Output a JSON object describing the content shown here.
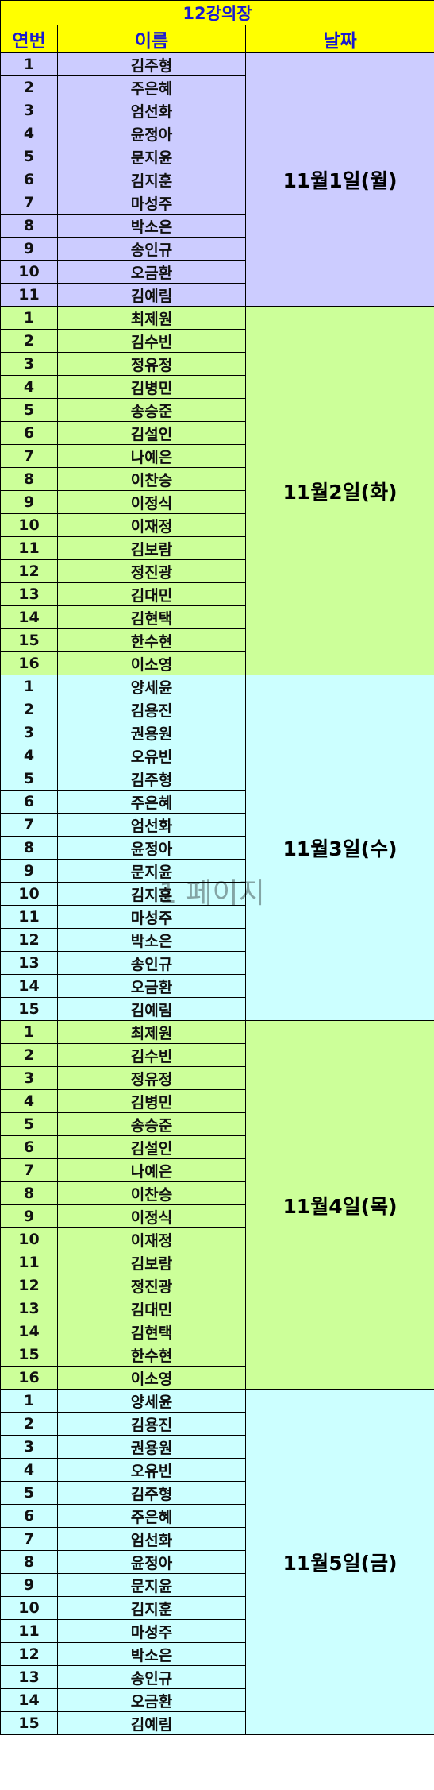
{
  "sheet_title": "12강의장",
  "headers": {
    "no": "연번",
    "name": "이름",
    "date": "날짜"
  },
  "watermark": "1 페이지",
  "groups": [
    {
      "date": "11월1일(월)",
      "bg": "#ccccff",
      "rows": [
        {
          "no": "1",
          "name": "김주형"
        },
        {
          "no": "2",
          "name": "주은혜"
        },
        {
          "no": "3",
          "name": "엄선화"
        },
        {
          "no": "4",
          "name": "윤정아"
        },
        {
          "no": "5",
          "name": "문지윤"
        },
        {
          "no": "6",
          "name": "김지훈"
        },
        {
          "no": "7",
          "name": "마성주"
        },
        {
          "no": "8",
          "name": "박소은"
        },
        {
          "no": "9",
          "name": "송인규"
        },
        {
          "no": "10",
          "name": "오금환"
        },
        {
          "no": "11",
          "name": "김예림"
        }
      ]
    },
    {
      "date": "11월2일(화)",
      "bg": "#ccff99",
      "rows": [
        {
          "no": "1",
          "name": "최제원"
        },
        {
          "no": "2",
          "name": "김수빈"
        },
        {
          "no": "3",
          "name": "정유정"
        },
        {
          "no": "4",
          "name": "김병민"
        },
        {
          "no": "5",
          "name": "송승준"
        },
        {
          "no": "6",
          "name": "김설인"
        },
        {
          "no": "7",
          "name": "나예은"
        },
        {
          "no": "8",
          "name": "이찬승"
        },
        {
          "no": "9",
          "name": "이정식"
        },
        {
          "no": "10",
          "name": "이재정"
        },
        {
          "no": "11",
          "name": "김보람"
        },
        {
          "no": "12",
          "name": "정진광"
        },
        {
          "no": "13",
          "name": "김대민"
        },
        {
          "no": "14",
          "name": "김현택"
        },
        {
          "no": "15",
          "name": "한수현"
        },
        {
          "no": "16",
          "name": "이소영"
        }
      ]
    },
    {
      "date": "11월3일(수)",
      "bg": "#ccffff",
      "rows": [
        {
          "no": "1",
          "name": "양세윤"
        },
        {
          "no": "2",
          "name": "김용진"
        },
        {
          "no": "3",
          "name": "권용원"
        },
        {
          "no": "4",
          "name": "오유빈"
        },
        {
          "no": "5",
          "name": "김주형"
        },
        {
          "no": "6",
          "name": "주은혜"
        },
        {
          "no": "7",
          "name": "엄선화"
        },
        {
          "no": "8",
          "name": "윤정아"
        },
        {
          "no": "9",
          "name": "문지윤"
        },
        {
          "no": "10",
          "name": "김지훈"
        },
        {
          "no": "11",
          "name": "마성주"
        },
        {
          "no": "12",
          "name": "박소은"
        },
        {
          "no": "13",
          "name": "송인규"
        },
        {
          "no": "14",
          "name": "오금환"
        },
        {
          "no": "15",
          "name": "김예림"
        }
      ]
    },
    {
      "date": "11월4일(목)",
      "bg": "#ccff99",
      "rows": [
        {
          "no": "1",
          "name": "최제원"
        },
        {
          "no": "2",
          "name": "김수빈"
        },
        {
          "no": "3",
          "name": "정유정"
        },
        {
          "no": "4",
          "name": "김병민"
        },
        {
          "no": "5",
          "name": "송승준"
        },
        {
          "no": "6",
          "name": "김설인"
        },
        {
          "no": "7",
          "name": "나예은"
        },
        {
          "no": "8",
          "name": "이찬승"
        },
        {
          "no": "9",
          "name": "이정식"
        },
        {
          "no": "10",
          "name": "이재정"
        },
        {
          "no": "11",
          "name": "김보람"
        },
        {
          "no": "12",
          "name": "정진광"
        },
        {
          "no": "13",
          "name": "김대민"
        },
        {
          "no": "14",
          "name": "김현택"
        },
        {
          "no": "15",
          "name": "한수현"
        },
        {
          "no": "16",
          "name": "이소영"
        }
      ]
    },
    {
      "date": "11월5일(금)",
      "bg": "#ccffff",
      "rows": [
        {
          "no": "1",
          "name": "양세윤"
        },
        {
          "no": "2",
          "name": "김용진"
        },
        {
          "no": "3",
          "name": "권용원"
        },
        {
          "no": "4",
          "name": "오유빈"
        },
        {
          "no": "5",
          "name": "김주형"
        },
        {
          "no": "6",
          "name": "주은혜"
        },
        {
          "no": "7",
          "name": "엄선화"
        },
        {
          "no": "8",
          "name": "윤정아"
        },
        {
          "no": "9",
          "name": "문지윤"
        },
        {
          "no": "10",
          "name": "김지훈"
        },
        {
          "no": "11",
          "name": "마성주"
        },
        {
          "no": "12",
          "name": "박소은"
        },
        {
          "no": "13",
          "name": "송인규"
        },
        {
          "no": "14",
          "name": "오금환"
        },
        {
          "no": "15",
          "name": "김예림"
        }
      ]
    }
  ]
}
